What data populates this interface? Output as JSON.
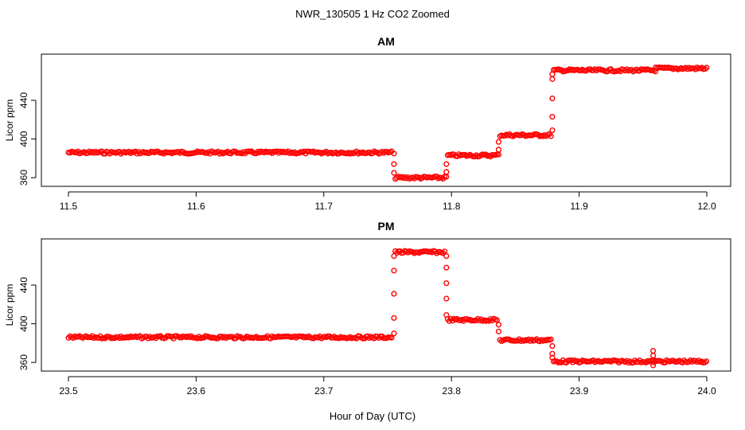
{
  "figure": {
    "title": "NWR_130505  1 Hz CO2 Zoomed",
    "xlabel": "Hour of Day (UTC)"
  },
  "chart_data": [
    {
      "type": "scatter",
      "title": "AM",
      "xlabel": "Hour of Day (UTC)",
      "ylabel": "Licor ppm",
      "xlim": [
        11.5,
        12.0
      ],
      "ylim": [
        356,
        482
      ],
      "xticks": [
        "11.5",
        "11.6",
        "11.7",
        "11.8",
        "11.9",
        "12.0"
      ],
      "yticks": [
        "360",
        "400",
        "440"
      ],
      "marker_color": "#ff0000",
      "segments": [
        {
          "x_start": 11.5,
          "x_end": 11.754,
          "y": 386
        },
        {
          "x_start": 11.756,
          "x_end": 11.795,
          "y": 360
        },
        {
          "x_start": 11.797,
          "x_end": 11.836,
          "y": 383
        },
        {
          "x_start": 11.838,
          "x_end": 11.878,
          "y": 404
        },
        {
          "x_start": 11.88,
          "x_end": 11.96,
          "y": 471
        },
        {
          "x_start": 11.96,
          "x_end": 12.0,
          "y": 473
        }
      ],
      "transitions": [
        {
          "x": 11.755,
          "y": [
            385,
            374,
            365
          ]
        },
        {
          "x": 11.796,
          "y": [
            361,
            366,
            374
          ]
        },
        {
          "x": 11.837,
          "y": [
            384,
            389,
            397
          ]
        },
        {
          "x": 11.879,
          "y": [
            409,
            423,
            442,
            462,
            467
          ]
        }
      ]
    },
    {
      "type": "scatter",
      "title": "PM",
      "xlabel": "Hour of Day (UTC)",
      "ylabel": "Licor ppm",
      "xlim": [
        23.5,
        24.0
      ],
      "ylim": [
        356,
        482
      ],
      "xticks": [
        "23.5",
        "23.6",
        "23.7",
        "23.8",
        "23.9",
        "24.0"
      ],
      "yticks": [
        "360",
        "400",
        "440"
      ],
      "marker_color": "#ff0000",
      "segments": [
        {
          "x_start": 23.5,
          "x_end": 23.754,
          "y": 386
        },
        {
          "x_start": 23.756,
          "x_end": 23.795,
          "y": 474
        },
        {
          "x_start": 23.797,
          "x_end": 23.836,
          "y": 404
        },
        {
          "x_start": 23.838,
          "x_end": 23.878,
          "y": 383
        },
        {
          "x_start": 23.88,
          "x_end": 24.0,
          "y": 361
        }
      ],
      "transitions": [
        {
          "x": 23.755,
          "y": [
            390,
            406,
            431,
            455,
            470
          ]
        },
        {
          "x": 23.796,
          "y": [
            470,
            458,
            442,
            426,
            409
          ]
        },
        {
          "x": 23.837,
          "y": [
            399,
            392
          ]
        },
        {
          "x": 23.879,
          "y": [
            377,
            369,
            365
          ]
        },
        {
          "x": 23.958,
          "y": [
            372,
            367,
            362,
            357
          ]
        }
      ]
    }
  ]
}
